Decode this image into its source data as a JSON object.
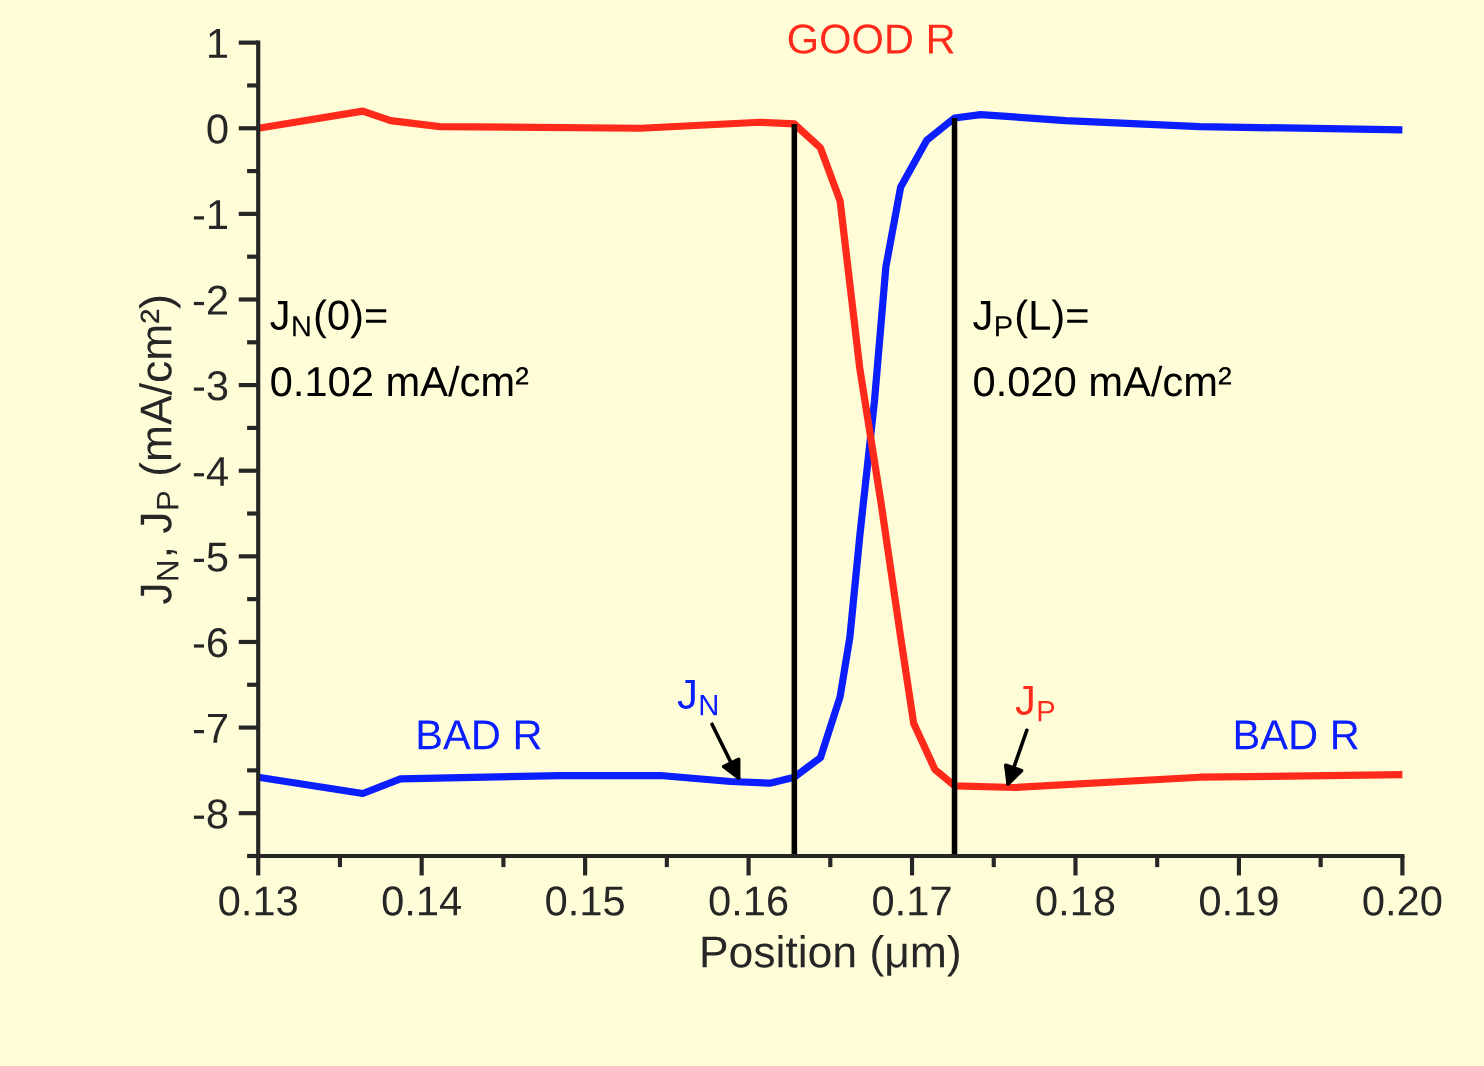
{
  "chart_data": {
    "type": "line",
    "xlabel": "Position (μm)",
    "ylabel": "J$_{N}$, J$_{P}$ (mA/cm²)",
    "xlim": [
      0.13,
      0.2
    ],
    "ylim": [
      -8.5,
      1
    ],
    "xticks": [
      0.13,
      0.14,
      0.15,
      0.16,
      0.17,
      0.18,
      0.19,
      {
        "value": 0.2,
        "label": "0.20"
      }
    ],
    "yticks": [
      -8,
      -7,
      -6,
      -5,
      -4,
      -3,
      -2,
      -1,
      0,
      1
    ],
    "grid": false,
    "legend": false,
    "marker": "none",
    "line_style": "solid",
    "series": [
      {
        "color": "#0a1eff",
        "x": [
          0.13,
          0.1364,
          0.1387,
          0.1485,
          0.1546,
          0.1589,
          0.1613,
          0.1628,
          0.1644,
          0.1656,
          0.1662,
          0.1668,
          0.1677,
          0.1684,
          0.1693,
          0.1709,
          0.1726,
          0.1742,
          0.1794,
          0.1876,
          0.2
        ],
        "values": [
          -7.58,
          -7.77,
          -7.6,
          -7.56,
          -7.56,
          -7.63,
          -7.65,
          -7.58,
          -7.35,
          -6.64,
          -5.94,
          -4.77,
          -3.19,
          -1.62,
          -0.69,
          -0.14,
          0.12,
          0.16,
          0.09,
          0.02,
          -0.02
        ]
      },
      {
        "color": "#ff2a1a",
        "x": [
          0.13,
          0.1364,
          0.1381,
          0.1411,
          0.1534,
          0.1607,
          0.1628,
          0.1644,
          0.1656,
          0.1668,
          0.1681,
          0.1693,
          0.1701,
          0.1714,
          0.1726,
          0.1763,
          0.1876,
          0.2
        ],
        "values": [
          0.0,
          0.2,
          0.09,
          0.02,
          0.0,
          0.07,
          0.05,
          -0.23,
          -0.85,
          -2.8,
          -4.37,
          -5.94,
          -6.95,
          -7.49,
          -7.68,
          -7.7,
          -7.58,
          -7.55
        ]
      }
    ],
    "ref_lines": [
      {
        "axis": "x",
        "value": 0.1628,
        "color": "#000000"
      },
      {
        "axis": "x",
        "value": 0.1726,
        "color": "#000000"
      }
    ],
    "annotations": [
      "J$_{N}$(0)=\n0.102 mA/cm²",
      "J$_{P}$(L)=\n0.020 mA/cm²",
      "GOOD R",
      "BAD R",
      "BAD R",
      {
        "text": "J$_{N}$",
        "x": 0.1595,
        "y": -7.63
      },
      {
        "text": "J$_{P}$",
        "x": 0.1758,
        "y": -7.7
      }
    ]
  }
}
